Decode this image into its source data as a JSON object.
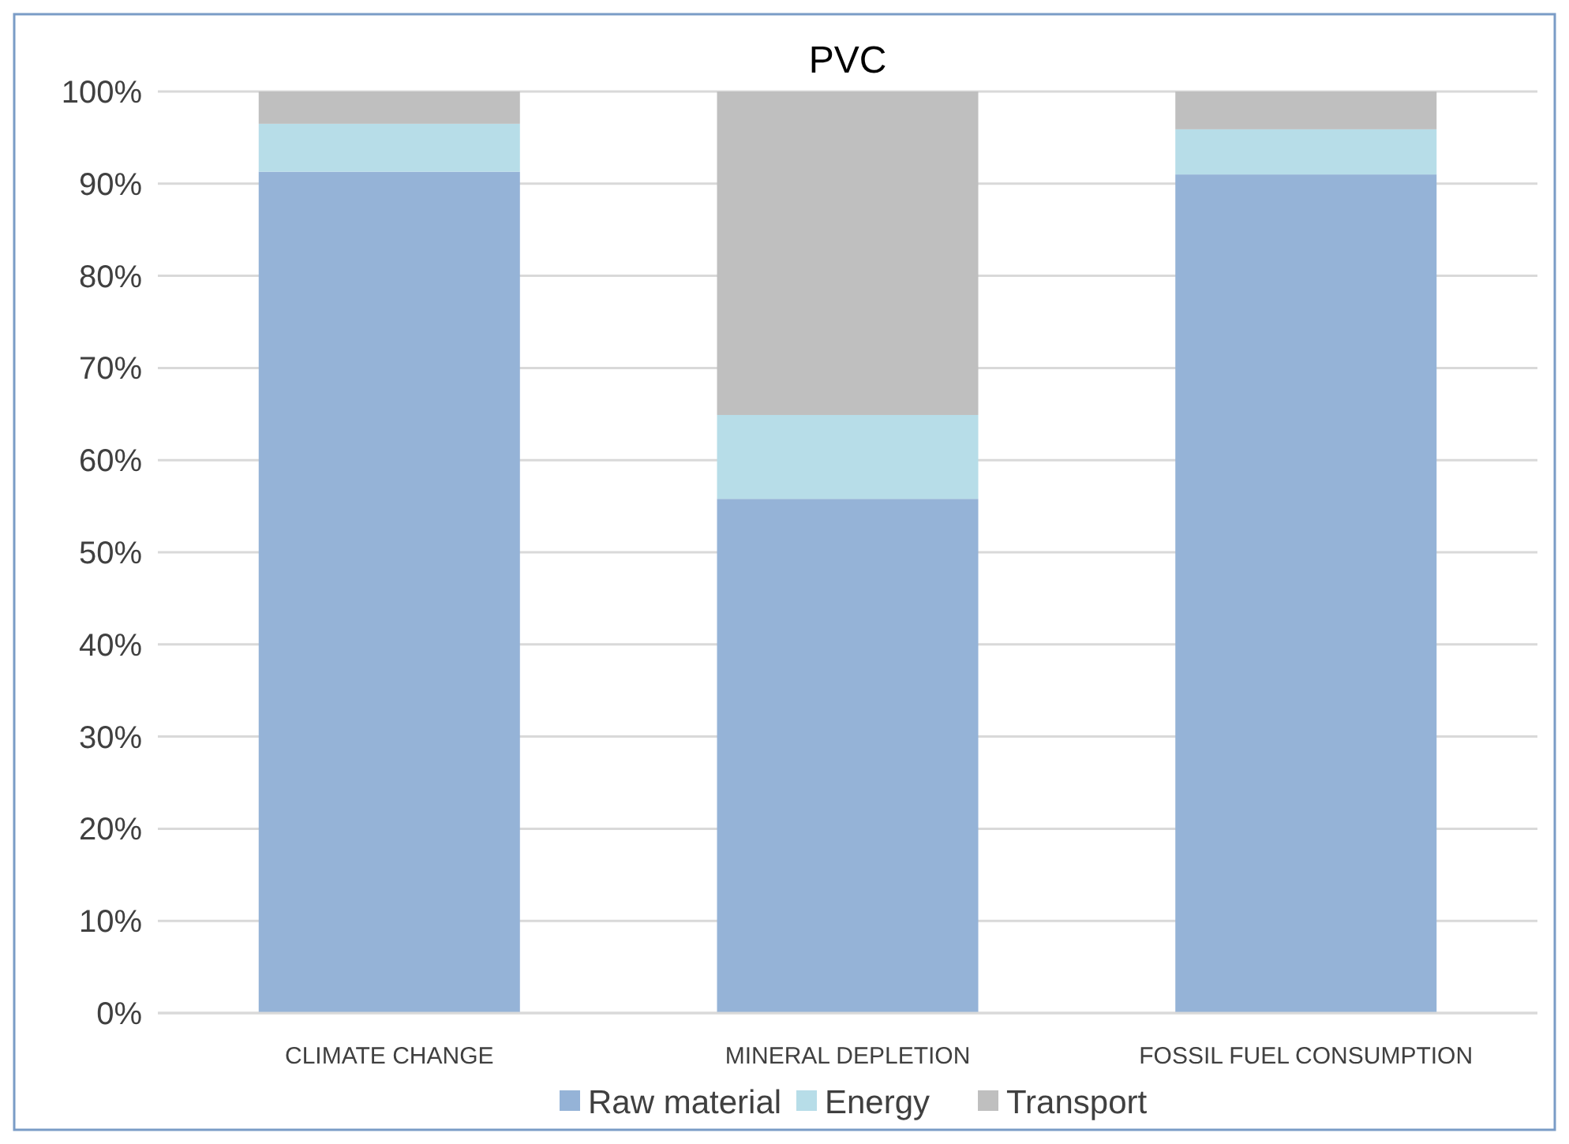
{
  "chart_data": {
    "type": "bar",
    "title": "PVC",
    "categories": [
      "CLIMATE CHANGE",
      "MINERAL DEPLETION",
      "FOSSIL FUEL CONSUMPTION"
    ],
    "stacked": true,
    "series": [
      {
        "name": "Raw material",
        "color": "#95b3d7",
        "values": [
          91.3,
          55.8,
          91.0
        ]
      },
      {
        "name": "Energy",
        "color": "#b7dde8",
        "values": [
          5.2,
          9.1,
          4.9
        ]
      },
      {
        "name": "Transport",
        "color": "#bfbfbf",
        "values": [
          3.5,
          35.1,
          4.1
        ]
      }
    ],
    "ylim": [
      0,
      100
    ],
    "yticks": [
      {
        "value": 0,
        "label": "0%"
      },
      {
        "value": 10,
        "label": "10%"
      },
      {
        "value": 20,
        "label": "20%"
      },
      {
        "value": 30,
        "label": "30%"
      },
      {
        "value": 40,
        "label": "40%"
      },
      {
        "value": 50,
        "label": "50%"
      },
      {
        "value": 60,
        "label": "60%"
      },
      {
        "value": 70,
        "label": "70%"
      },
      {
        "value": 80,
        "label": "80%"
      },
      {
        "value": 90,
        "label": "90%"
      },
      {
        "value": 100,
        "label": "100%"
      }
    ],
    "grid": "y",
    "legend": "bottom"
  }
}
